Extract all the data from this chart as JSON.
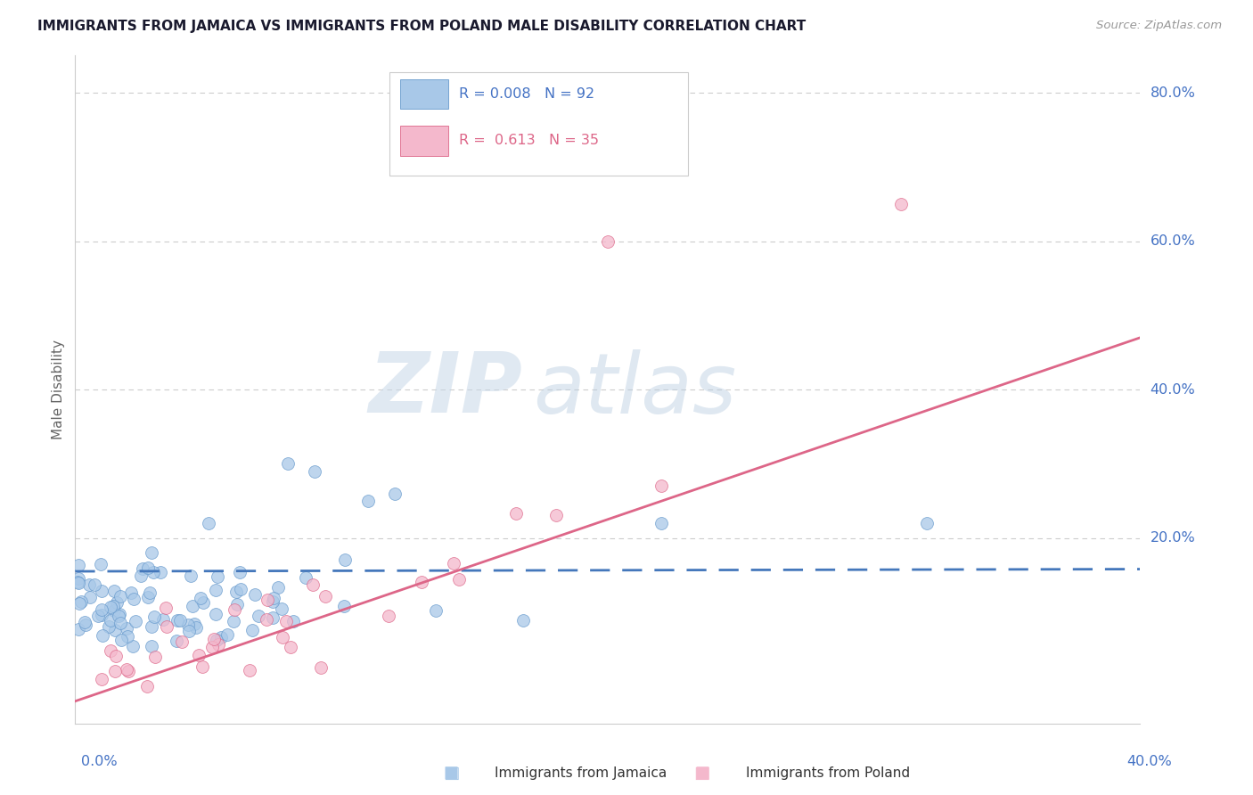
{
  "title": "IMMIGRANTS FROM JAMAICA VS IMMIGRANTS FROM POLAND MALE DISABILITY CORRELATION CHART",
  "source": "Source: ZipAtlas.com",
  "ylabel": "Male Disability",
  "ytick_labels": [
    "20.0%",
    "40.0%",
    "60.0%",
    "80.0%"
  ],
  "ytick_values": [
    0.2,
    0.4,
    0.6,
    0.8
  ],
  "xlim": [
    0.0,
    0.4
  ],
  "ylim": [
    -0.05,
    0.85
  ],
  "series_jamaica": {
    "color": "#a8c8e8",
    "edge_color": "#6699cc",
    "R": 0.008,
    "N": 92,
    "trend_color": "#4477bb",
    "trend_style": "--",
    "trend_y0": 0.155,
    "trend_y1": 0.158
  },
  "series_poland": {
    "color": "#f4b8cc",
    "edge_color": "#dd6688",
    "R": 0.613,
    "N": 35,
    "trend_color": "#dd6688",
    "trend_style": "-",
    "trend_y0": -0.02,
    "trend_y1": 0.47
  },
  "watermark_zip": "ZIP",
  "watermark_atlas": "atlas",
  "background_color": "#ffffff",
  "grid_color": "#cccccc",
  "axis_label_color": "#4472c4",
  "title_color": "#1a1a2e",
  "legend_title_color_jamaica": "#4472c4",
  "legend_title_color_poland": "#dd6688"
}
